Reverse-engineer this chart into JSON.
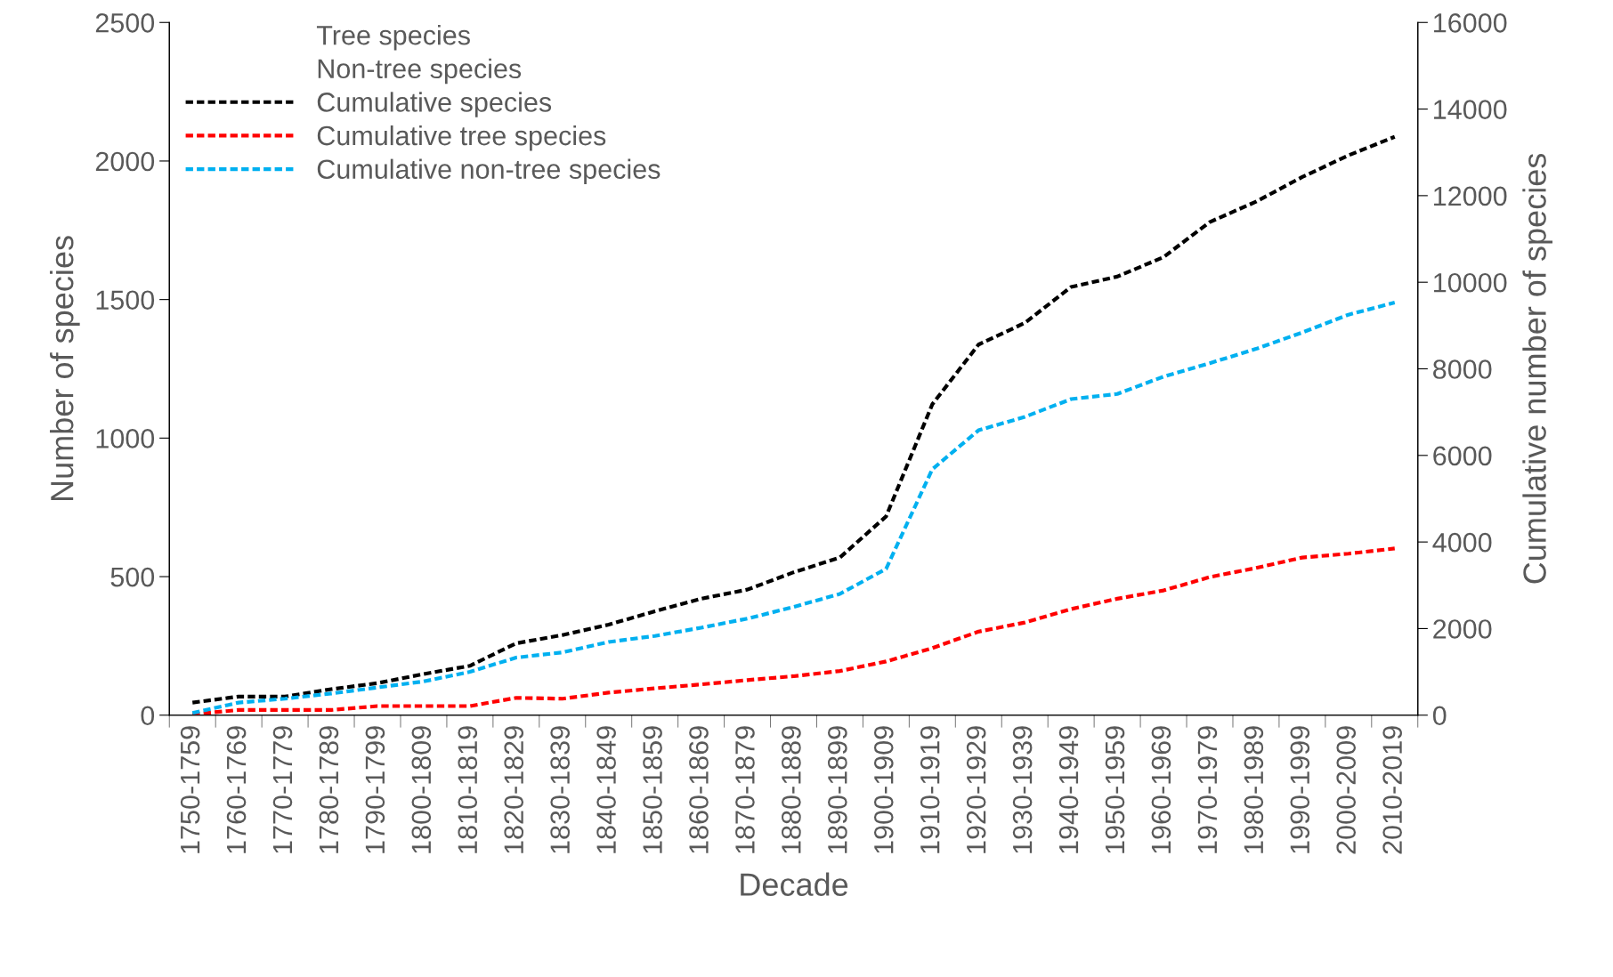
{
  "chart_data": {
    "type": "line",
    "xlabel": "Decade",
    "ylabel": "Number of species",
    "y2label": "Cumulative number of species",
    "categories": [
      "1750-1759",
      "1760-1769",
      "1770-1779",
      "1780-1789",
      "1790-1799",
      "1800-1809",
      "1810-1819",
      "1820-1829",
      "1830-1839",
      "1840-1849",
      "1850-1859",
      "1860-1869",
      "1870-1879",
      "1880-1889",
      "1890-1899",
      "1900-1909",
      "1910-1919",
      "1920-1929",
      "1930-1939",
      "1940-1949",
      "1950-1959",
      "1960-1969",
      "1970-1979",
      "1980-1989",
      "1990-1999",
      "2000-2009",
      "2010-2019"
    ],
    "ylim": [
      0,
      2500
    ],
    "yticks": [
      0,
      500,
      1000,
      1500,
      2000,
      2500
    ],
    "y2lim": [
      0,
      16000
    ],
    "y2ticks": [
      0,
      2000,
      4000,
      6000,
      8000,
      10000,
      12000,
      14000,
      16000
    ],
    "annotations": [
      "Tree species",
      "Non-tree species"
    ],
    "grid": false,
    "legend": "top left",
    "line_style": "dashed",
    "marker": "none",
    "series": [
      {
        "name": "Cumulative species",
        "axis": "y2",
        "color": "#000000",
        "values": [
          290,
          430,
          430,
          600,
          740,
          950,
          1140,
          1660,
          1850,
          2090,
          2400,
          2690,
          2900,
          3300,
          3640,
          4590,
          7180,
          8560,
          9060,
          9890,
          10130,
          10580,
          11390,
          11860,
          12430,
          12930,
          13360
        ]
      },
      {
        "name": "Cumulative tree species",
        "axis": "y2",
        "color": "#ff0000",
        "values": [
          20,
          120,
          120,
          120,
          210,
          210,
          210,
          400,
          380,
          520,
          620,
          710,
          810,
          900,
          1020,
          1240,
          1550,
          1930,
          2140,
          2450,
          2690,
          2880,
          3190,
          3400,
          3640,
          3730,
          3850
        ]
      },
      {
        "name": "Cumulative non-tree species",
        "axis": "y2",
        "color": "#00b0f0",
        "values": [
          50,
          290,
          380,
          500,
          640,
          780,
          1000,
          1330,
          1450,
          1690,
          1830,
          2020,
          2230,
          2500,
          2800,
          3380,
          5680,
          6580,
          6890,
          7300,
          7420,
          7820,
          8130,
          8460,
          8840,
          9250,
          9530
        ]
      }
    ]
  }
}
